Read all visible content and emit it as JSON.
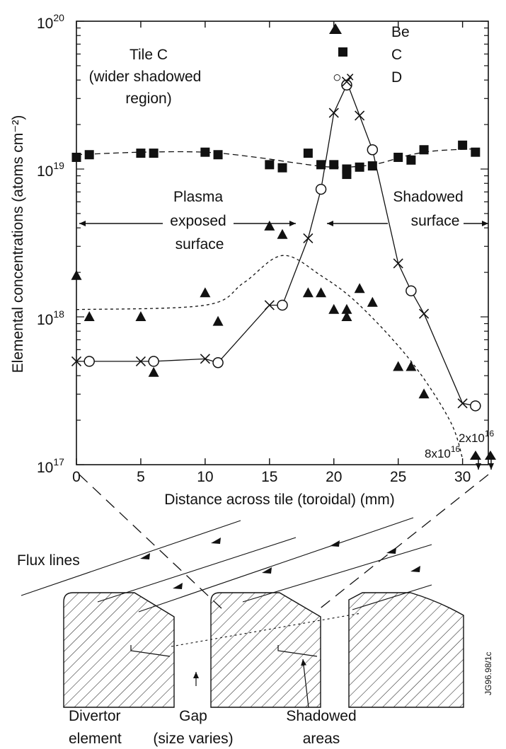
{
  "chart_data": {
    "type": "scatter",
    "yscale": "log",
    "xlim": [
      0,
      32
    ],
    "ylim": [
      1e+17,
      1e+20
    ],
    "xlabel": "Distance across tile (toroidal) (mm)",
    "ylabel": "Elemental concentrations (atoms cm⁻²)",
    "x_ticks": [
      "0",
      "5",
      "10",
      "15",
      "20",
      "25",
      "30"
    ],
    "y_ticks": [
      {
        "base": "10",
        "exp": "17"
      },
      {
        "base": "10",
        "exp": "18"
      },
      {
        "base": "10",
        "exp": "19"
      },
      {
        "base": "10",
        "exp": "20"
      }
    ],
    "title_lines": [
      "Tile C",
      "(wider shadowed",
      "region)"
    ],
    "legend": [
      {
        "symbol": "▲",
        "name": "Be"
      },
      {
        "symbol": "■",
        "name": "C"
      },
      {
        "symbol": "○,×",
        "name": "D"
      }
    ],
    "series": [
      {
        "name": "Be",
        "marker": "triangle",
        "points": [
          [
            0,
            1.9e+18
          ],
          [
            1,
            1e+18
          ],
          [
            5,
            1e+18
          ],
          [
            6,
            4.2e+17
          ],
          [
            10,
            1.45e+18
          ],
          [
            11,
            9.3e+17
          ],
          [
            15,
            4.1e+18
          ],
          [
            16,
            3.6e+18
          ],
          [
            18,
            1.45e+18
          ],
          [
            19,
            1.45e+18
          ],
          [
            20,
            1.12e+18
          ],
          [
            21,
            1.12e+18
          ],
          [
            21,
            1e+18
          ],
          [
            22,
            1.55e+18
          ],
          [
            23,
            1.25e+18
          ],
          [
            25,
            4.6e+17
          ],
          [
            26,
            4.6e+17
          ],
          [
            27,
            3e+17
          ]
        ],
        "trend": [
          [
            0,
            1.12e+18
          ],
          [
            10,
            1.2e+18
          ],
          [
            13,
            1.7e+18
          ],
          [
            16,
            2.6e+18
          ],
          [
            19,
            1.9e+18
          ],
          [
            22,
            1.2e+18
          ],
          [
            26,
            5e+17
          ],
          [
            29,
            2e+17
          ],
          [
            30,
            1.1e+17
          ]
        ]
      },
      {
        "name": "C",
        "marker": "square",
        "points": [
          [
            0,
            1.2e+19
          ],
          [
            1,
            1.25e+19
          ],
          [
            5,
            1.28e+19
          ],
          [
            6,
            1.28e+19
          ],
          [
            10,
            1.3e+19
          ],
          [
            11,
            1.25e+19
          ],
          [
            15,
            1.07e+19
          ],
          [
            16,
            1.02e+19
          ],
          [
            18,
            1.28e+19
          ],
          [
            19,
            1.07e+19
          ],
          [
            20,
            1.07e+19
          ],
          [
            21,
            1e+19
          ],
          [
            21,
            9.2e+18
          ],
          [
            22,
            1.03e+19
          ],
          [
            23,
            1.05e+19
          ],
          [
            25,
            1.2e+19
          ],
          [
            26,
            1.15e+19
          ],
          [
            27,
            1.35e+19
          ],
          [
            30,
            1.45e+19
          ],
          [
            31,
            1.3e+19
          ]
        ],
        "trend": [
          [
            0,
            1.25e+19
          ],
          [
            5,
            1.3e+19
          ],
          [
            10,
            1.3e+19
          ],
          [
            14,
            1.2e+19
          ],
          [
            17,
            1.1e+19
          ],
          [
            20,
            1.03e+19
          ],
          [
            23,
            1.07e+19
          ],
          [
            26,
            1.25e+19
          ],
          [
            28,
            1.33e+19
          ],
          [
            31,
            1.37e+19
          ]
        ]
      },
      {
        "name": "D (○)",
        "marker": "circle",
        "points": [
          [
            1,
            5e+17
          ],
          [
            6,
            5e+17
          ],
          [
            11,
            4.9e+17
          ],
          [
            16,
            1.2e+18
          ],
          [
            19,
            7.3e+18
          ],
          [
            21,
            3.7e+19
          ],
          [
            23,
            1.35e+19
          ],
          [
            26,
            1.5e+18
          ],
          [
            31,
            2.5e+17
          ]
        ]
      },
      {
        "name": "D (×)",
        "marker": "x",
        "points": [
          [
            0,
            5e+17
          ],
          [
            5,
            5e+17
          ],
          [
            10,
            5.2e+17
          ],
          [
            15,
            1.2e+18
          ],
          [
            18,
            3.4e+18
          ],
          [
            20,
            2.4e+19
          ],
          [
            21,
            3.9e+19
          ],
          [
            22,
            2.3e+19
          ],
          [
            25,
            2.3e+18
          ],
          [
            27,
            1.05e+18
          ],
          [
            30,
            2.6e+17
          ]
        ]
      }
    ],
    "annotations": {
      "left_region": [
        "Plasma",
        "exposed",
        "surface"
      ],
      "right_region": [
        "Shadowed",
        "surface"
      ],
      "offscale_left": {
        "base": "8x10",
        "exp": "16"
      },
      "offscale_right": {
        "base": "2x10",
        "exp": "16"
      }
    }
  },
  "diagram": {
    "flux_label": "Flux lines",
    "captions": [
      {
        "l1": "Divertor",
        "l2": "element"
      },
      {
        "l1": "Gap",
        "l2": "(size varies)"
      },
      {
        "l1": "Shadowed",
        "l2": "areas"
      }
    ],
    "code": "JG96.98/1c"
  }
}
